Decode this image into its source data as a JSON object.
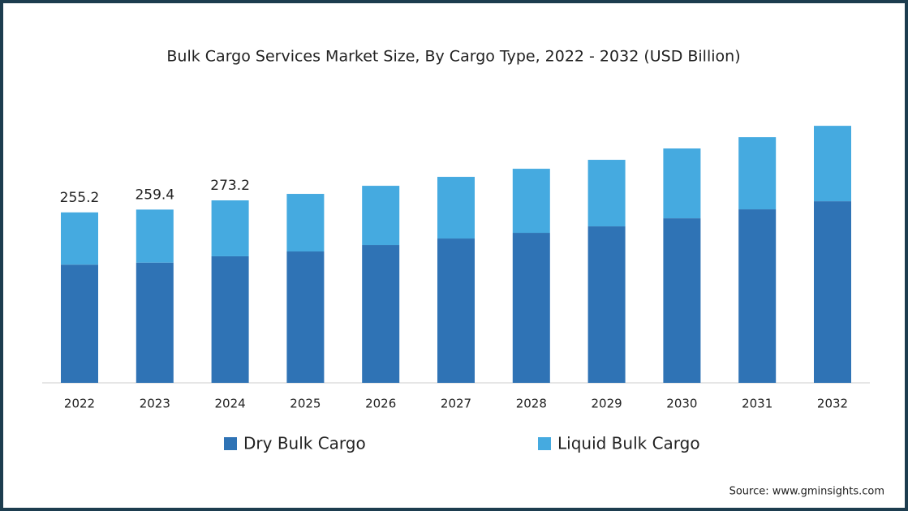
{
  "chart_data": {
    "type": "stacked_bar",
    "title": "Bulk Cargo Services Market Size, By Cargo Type, 2022 - 2032 (USD Billion)",
    "categories": [
      "2022",
      "2023",
      "2024",
      "2025",
      "2026",
      "2027",
      "2028",
      "2029",
      "2030",
      "2031",
      "2032"
    ],
    "series": [
      {
        "name": "Dry Bulk Cargo",
        "color": "#2f73b5",
        "values": [
          177.0,
          180.0,
          189.5,
          196.7,
          206.4,
          216.1,
          224.6,
          234.3,
          246.4,
          259.8,
          271.9
        ]
      },
      {
        "name": "Liquid Bulk Cargo",
        "color": "#45aae0",
        "values": [
          78.2,
          79.4,
          83.7,
          86.2,
          88.6,
          92.3,
          95.9,
          99.6,
          104.5,
          108.0,
          112.9
        ]
      }
    ],
    "totals": [
      255.2,
      259.4,
      273.2,
      null,
      null,
      null,
      null,
      null,
      null,
      null,
      null
    ],
    "legend": "bottom",
    "source": "Source: www.gminsights.com"
  }
}
